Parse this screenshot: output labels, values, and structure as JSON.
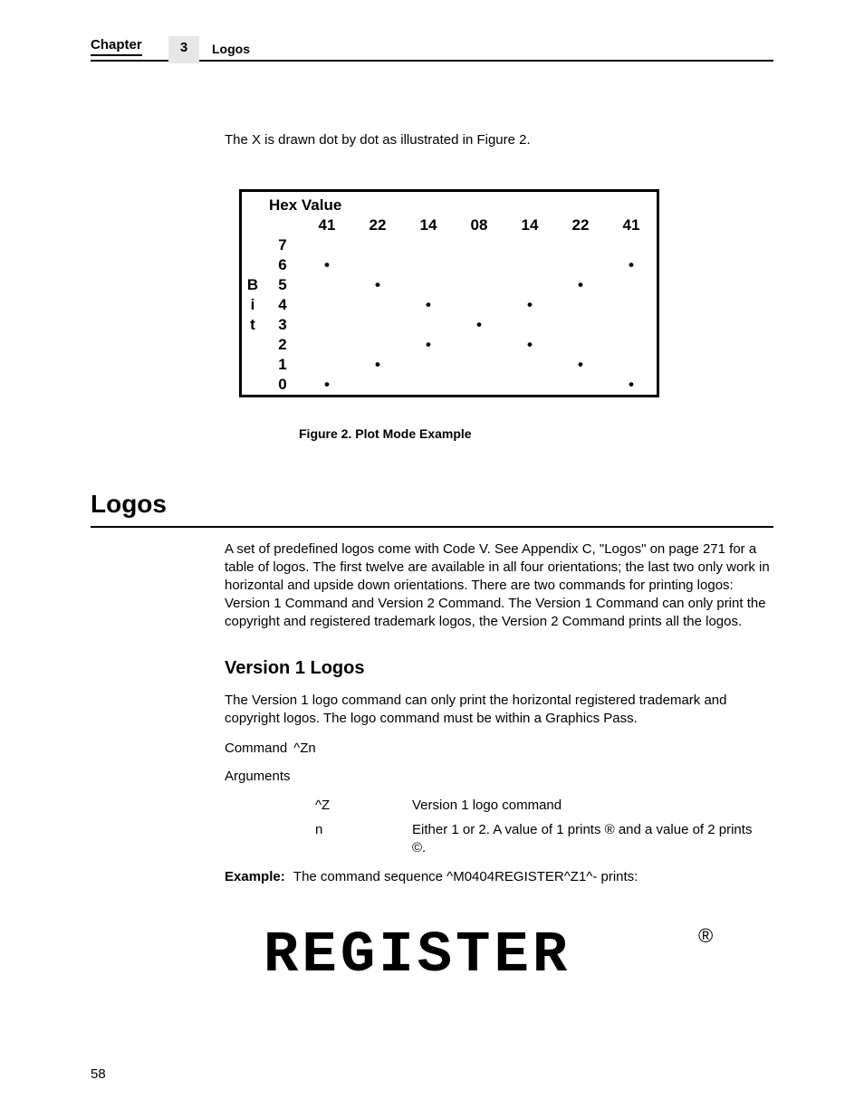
{
  "header": {
    "chapter_label": "Chapter",
    "chapter_number": "3",
    "section": "Logos"
  },
  "intro": "The X is drawn dot by dot as illustrated in Figure 2.",
  "figure": {
    "hex_title": "Hex Value",
    "bit_label": [
      "B",
      "i",
      "t"
    ],
    "hex_values": [
      "41",
      "22",
      "14",
      "08",
      "14",
      "22",
      "41"
    ],
    "bit_rows": [
      "7",
      "6",
      "5",
      "4",
      "3",
      "2",
      "1",
      "0"
    ],
    "dots": {
      "6": [
        0,
        6
      ],
      "5": [
        1,
        5
      ],
      "4": [
        2,
        4
      ],
      "3": [
        3
      ],
      "2": [
        2,
        4
      ],
      "1": [
        1,
        5
      ],
      "0": [
        0,
        6
      ]
    },
    "caption": "Figure 2. Plot Mode Example"
  },
  "h1": "Logos",
  "p1": "A set of predefined logos come with Code V. See Appendix C, \"Logos\" on page 271 for a table of logos. The first twelve are available in all four orientations; the last two only work in horizontal and upside down orientations. There are two commands for printing logos: Version 1 Command and Version 2 Command. The Version 1 Command can only print the copyright and registered trademark logos, the Version 2 Command prints all the logos.",
  "h2": "Version 1 Logos",
  "p2": "The Version 1 logo command can only print the horizontal registered trademark and copyright logos. The logo command must be within a Graphics Pass.",
  "command": {
    "label": "Command",
    "value": "^Zn"
  },
  "arguments": {
    "label": "Arguments",
    "rows": [
      {
        "name": "^Z",
        "desc": "Version 1 logo command"
      },
      {
        "name": "n",
        "desc": "Either 1 or 2. A value of 1 prints ® and a value of 2 prints ©."
      }
    ]
  },
  "example": {
    "label": "Example:",
    "text": "The command sequence ^M0404REGISTER^Z1^- prints:"
  },
  "register_text": "REGISTER",
  "register_symbol": "®",
  "page_number": "58",
  "colors": {
    "text": "#000000",
    "background": "#ffffff",
    "header_num_bg": "#e6e6e6",
    "rule": "#000000"
  }
}
